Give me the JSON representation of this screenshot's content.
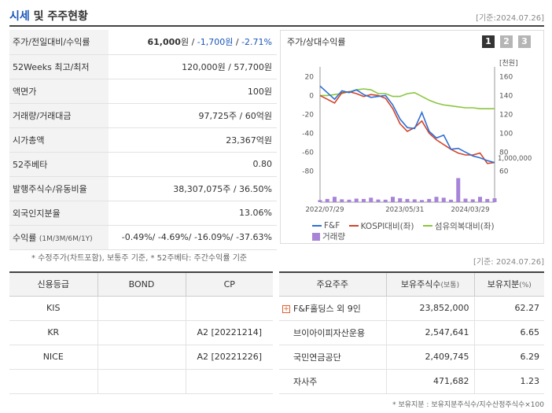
{
  "header": {
    "title_blue": "시세",
    "title_rest": " 및 주주현황",
    "date": "[기준:2024.07.26]"
  },
  "info_rows": [
    {
      "label": "주가/전일대비/수익률",
      "price": "61,000",
      "unit": "원",
      "sep1": " / ",
      "change": "-1,700원",
      "sep2": " / ",
      "rate": "-2.71%"
    },
    {
      "label": "52Weeks 최고/최저",
      "value": "120,000원 / 57,700원"
    },
    {
      "label": "액면가",
      "value": "100원"
    },
    {
      "label": "거래량/거래대금",
      "value": "97,725주 / 60억원"
    },
    {
      "label": "시가총액",
      "value": "23,367억원"
    },
    {
      "label": "52주베타",
      "value": "0.80"
    },
    {
      "label": "발행주식수/유동비율",
      "value": "38,307,075주 / 36.50%"
    },
    {
      "label": "외국인지분율",
      "value": "13.06%"
    },
    {
      "label": "수익률",
      "label_small": "(1M/3M/6M/1Y)",
      "value": "-0.49%/ -4.69%/ -16.09%/ -37.63%"
    }
  ],
  "note1": "* 수정주가(차트포함), 보통주 기준, * 52주베타: 주간수익률 기준",
  "chart_panel": {
    "title": "주가/상대수익률",
    "pages": [
      "1",
      "2",
      "3"
    ],
    "legend": [
      {
        "name": "F&F",
        "color": "#2f6fd6",
        "kind": "line"
      },
      {
        "name": "KOSPI대비(좌)",
        "color": "#d2452b",
        "kind": "line"
      },
      {
        "name": "섬유의복대비(좌)",
        "color": "#8bc53f",
        "kind": "line"
      },
      {
        "name": "거래량",
        "color": "#a784d8",
        "kind": "box"
      }
    ]
  },
  "chart_data": {
    "type": "line",
    "x": [
      "2022/07",
      "2022/08",
      "2022/09",
      "2022/10",
      "2022/11",
      "2022/12",
      "2023/01",
      "2023/02",
      "2023/03",
      "2023/04",
      "2023/05",
      "2023/06",
      "2023/07",
      "2023/08",
      "2023/09",
      "2023/10",
      "2023/11",
      "2023/12",
      "2024/01",
      "2024/02",
      "2024/03",
      "2024/04",
      "2024/05",
      "2024/06",
      "2024/07"
    ],
    "xticks": [
      "2022/07/29",
      "2023/05/31",
      "2024/03/29"
    ],
    "left_axis": {
      "ticks": [
        "20",
        "0",
        "-20",
        "-40",
        "-60",
        "-80"
      ],
      "range": [
        -88,
        22
      ]
    },
    "right_axis": {
      "unit": "[천원]",
      "ticks": [
        "160",
        "140",
        "120",
        "100",
        "80",
        "60"
      ],
      "range": [
        52,
        162
      ]
    },
    "series": [
      {
        "name": "F&F",
        "axis": "right",
        "values": [
          150,
          143,
          136,
          145,
          143,
          146,
          141,
          138,
          139,
          140,
          130,
          115,
          106,
          105,
          122,
          102,
          95,
          98,
          83,
          84,
          80,
          76,
          74,
          71,
          69
        ]
      },
      {
        "name": "KOSPI대비(좌)",
        "axis": "left",
        "values": [
          0,
          -4,
          -8,
          3,
          4,
          2,
          -1,
          1,
          0,
          -3,
          -14,
          -30,
          -38,
          -34,
          -27,
          -40,
          -47,
          -52,
          -57,
          -61,
          -63,
          -63,
          -61,
          -72,
          -71
        ]
      },
      {
        "name": "섬유의복대비(좌)",
        "axis": "left",
        "values": [
          0,
          0,
          1,
          2,
          4,
          6,
          7,
          6,
          2,
          2,
          -1,
          -1,
          2,
          3,
          -1,
          -5,
          -8,
          -10,
          -11,
          -12,
          -13,
          -13,
          -14,
          -14,
          -14
        ]
      }
    ],
    "volume": {
      "name": "거래량",
      "tick": "1,000,000",
      "max": 1500000,
      "values": [
        120000,
        180000,
        300000,
        160000,
        140000,
        200000,
        180000,
        250000,
        150000,
        140000,
        300000,
        220000,
        180000,
        160000,
        120000,
        180000,
        300000,
        250000,
        140000,
        1350000,
        200000,
        160000,
        300000,
        180000,
        220000
      ]
    }
  },
  "date2": "[기준: 2024.07.26]",
  "credit": {
    "headers": [
      "신용등급",
      "BOND",
      "CP"
    ],
    "rows": [
      [
        "KIS",
        "",
        ""
      ],
      [
        "KR",
        "",
        "A2 [20221214]"
      ],
      [
        "NICE",
        "",
        "A2 [20221226]"
      ],
      [
        "",
        "",
        ""
      ]
    ]
  },
  "holders": {
    "headers": [
      "주요주주",
      "보유주식수",
      "(보통)",
      "보유지분",
      "(%)"
    ],
    "rows": [
      {
        "name": "F&F홀딩스 외 9인",
        "shares": "23,852,000",
        "pct": "62.27",
        "expand": "+"
      },
      {
        "name": "브이아이피자산운용",
        "shares": "2,547,641",
        "pct": "6.65"
      },
      {
        "name": "국민연금공단",
        "shares": "2,409,745",
        "pct": "6.29"
      },
      {
        "name": "자사주",
        "shares": "471,682",
        "pct": "1.23"
      }
    ]
  },
  "note2": "* 보유지분 : 보유지분주식수/지수산정주식수×100"
}
